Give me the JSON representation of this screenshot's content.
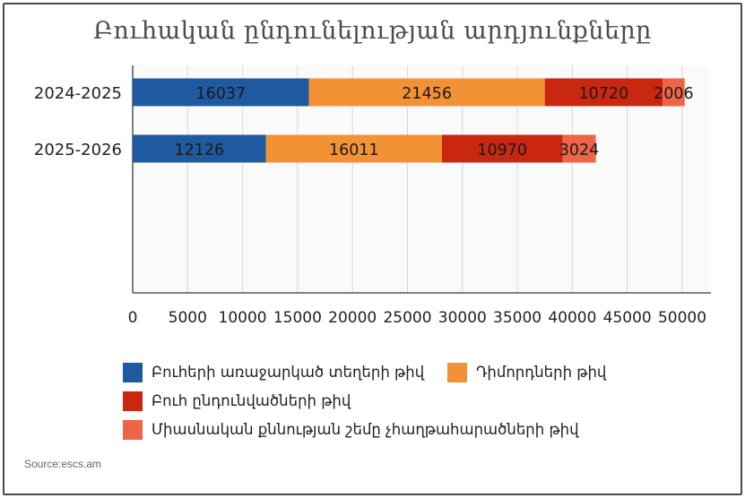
{
  "chart_data": {
    "type": "bar",
    "orientation": "horizontal",
    "stacked": true,
    "title": "Բուհական ընդունելության արդյունքները",
    "categories": [
      "2024-2025",
      "2025-2026"
    ],
    "series": [
      {
        "name": "Բուհերի առաջարկած տեղերի թիվ",
        "color": "#1f5aa0",
        "values": [
          16037,
          12126
        ]
      },
      {
        "name": "Դիմորդների թիվ",
        "color": "#f39234",
        "values": [
          21456,
          16011
        ]
      },
      {
        "name": "Բուհ ընդունվածների թիվ",
        "color": "#c9270f",
        "values": [
          10720,
          10970
        ]
      },
      {
        "name": "Միասնական քննության շեմը չհաղթահարածների թիվ",
        "color": "#ef6346",
        "values": [
          2006,
          3024
        ]
      }
    ],
    "xlim": [
      0,
      50000
    ],
    "xticks": [
      "0",
      "5000",
      "10000",
      "15000",
      "20000",
      "25000",
      "30000",
      "35000",
      "40000",
      "45000",
      "50000"
    ],
    "grid": true,
    "legend_position": "bottom"
  },
  "source": "Source:escs.am"
}
